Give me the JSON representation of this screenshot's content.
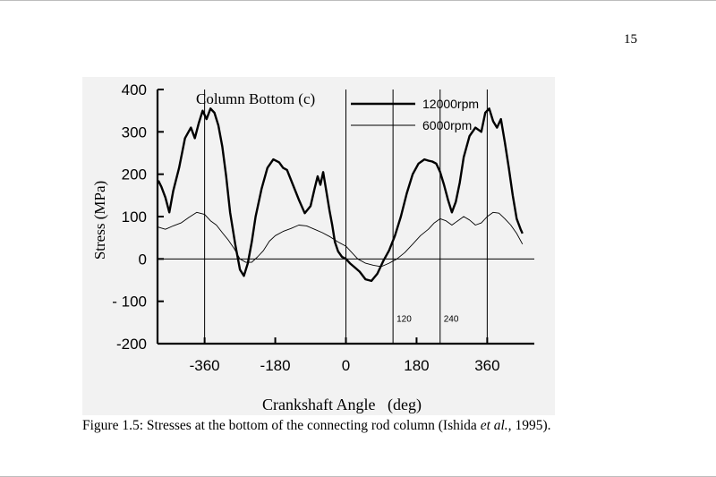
{
  "page": {
    "number": "15"
  },
  "figure": {
    "caption_prefix": "Figure 1.5: Stresses at the bottom of the connecting rod column (Ishida ",
    "caption_italic": "et al.,",
    "caption_suffix": " 1995)."
  },
  "chart_data": {
    "type": "line",
    "title": "Column Bottom (c)",
    "xlabel": "Crankshaft Angle   (deg)",
    "ylabel": "Stress (MPa)",
    "xlim": [
      -480,
      480
    ],
    "ylim": [
      -200,
      400
    ],
    "xticks": [
      -360,
      -180,
      0,
      180,
      360
    ],
    "xtick_labels": [
      "-360",
      "-180",
      "0",
      "180",
      "360"
    ],
    "yticks": [
      400,
      300,
      200,
      100,
      0,
      -100,
      -200
    ],
    "ytick_labels": [
      "400",
      "300",
      "200",
      "100",
      "0",
      "- 100",
      "-200"
    ],
    "grid": false,
    "legend_position": "top-right",
    "reference_lines": {
      "vertical": [
        -360,
        0,
        120,
        240,
        360
      ],
      "horizontal": [
        0
      ]
    },
    "annotations": [
      {
        "text": "120",
        "x": 120,
        "y": -140
      },
      {
        "text": "240",
        "x": 240,
        "y": -140
      }
    ],
    "series": [
      {
        "name": "12000rpm",
        "color": "#000000",
        "style": "thick",
        "x": [
          -478,
          -470,
          -460,
          -450,
          -440,
          -425,
          -410,
          -395,
          -385,
          -375,
          -365,
          -355,
          -345,
          -335,
          -325,
          -315,
          -305,
          -295,
          -282,
          -270,
          -260,
          -250,
          -240,
          -230,
          -215,
          -200,
          -185,
          -170,
          -160,
          -150,
          -135,
          -120,
          -105,
          -90,
          -80,
          -72,
          -65,
          -58,
          -50,
          -42,
          -35,
          -28,
          -20,
          -10,
          0,
          10,
          20,
          35,
          50,
          65,
          80,
          95,
          110,
          125,
          140,
          155,
          170,
          185,
          200,
          210,
          220,
          230,
          240,
          250,
          260,
          270,
          280,
          290,
          300,
          315,
          330,
          345,
          355,
          365,
          375,
          385,
          395,
          405,
          415,
          425,
          435,
          445,
          450
        ],
        "y": [
          185,
          170,
          145,
          110,
          160,
          215,
          285,
          310,
          285,
          320,
          350,
          330,
          355,
          345,
          315,
          265,
          195,
          110,
          35,
          -25,
          -40,
          -10,
          40,
          100,
          165,
          215,
          235,
          228,
          215,
          210,
          175,
          140,
          108,
          125,
          165,
          195,
          175,
          205,
          160,
          115,
          80,
          40,
          18,
          5,
          0,
          -10,
          -18,
          -30,
          -48,
          -52,
          -35,
          -5,
          20,
          55,
          100,
          155,
          200,
          225,
          235,
          232,
          230,
          225,
          205,
          175,
          140,
          110,
          135,
          180,
          240,
          290,
          310,
          300,
          345,
          355,
          325,
          310,
          330,
          275,
          215,
          150,
          95,
          70,
          60
        ]
      },
      {
        "name": "6000rpm",
        "color": "#000000",
        "style": "thin",
        "x": [
          -478,
          -460,
          -440,
          -420,
          -400,
          -380,
          -360,
          -345,
          -330,
          -315,
          -300,
          -285,
          -270,
          -255,
          -240,
          -225,
          -210,
          -195,
          -180,
          -160,
          -140,
          -120,
          -100,
          -80,
          -60,
          -40,
          -20,
          0,
          15,
          30,
          50,
          70,
          90,
          110,
          130,
          150,
          170,
          190,
          210,
          225,
          240,
          255,
          270,
          285,
          300,
          315,
          330,
          345,
          360,
          375,
          390,
          405,
          420,
          435,
          450
        ],
        "y": [
          75,
          70,
          78,
          85,
          98,
          110,
          105,
          90,
          80,
          62,
          45,
          25,
          0,
          -8,
          -8,
          5,
          20,
          42,
          55,
          65,
          72,
          80,
          78,
          70,
          62,
          52,
          40,
          30,
          15,
          0,
          -10,
          -15,
          -18,
          -10,
          0,
          15,
          35,
          55,
          70,
          85,
          95,
          90,
          80,
          90,
          100,
          92,
          80,
          85,
          100,
          110,
          108,
          95,
          80,
          60,
          35
        ]
      }
    ]
  }
}
